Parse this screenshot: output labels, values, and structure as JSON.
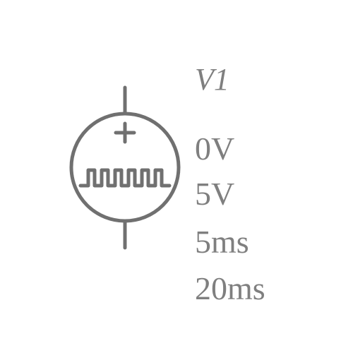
{
  "component": {
    "name": "V1",
    "type_icon": "pulse-voltage-source-icon",
    "polarity_symbol": "+",
    "params": [
      {
        "id": "low",
        "text": "0V"
      },
      {
        "id": "high",
        "text": "5V"
      },
      {
        "id": "on_time",
        "text": "5ms"
      },
      {
        "id": "period",
        "text": "20ms"
      }
    ]
  },
  "colors": {
    "stroke": "#707070",
    "text": "#7f7f7f",
    "background": "#ffffff"
  }
}
